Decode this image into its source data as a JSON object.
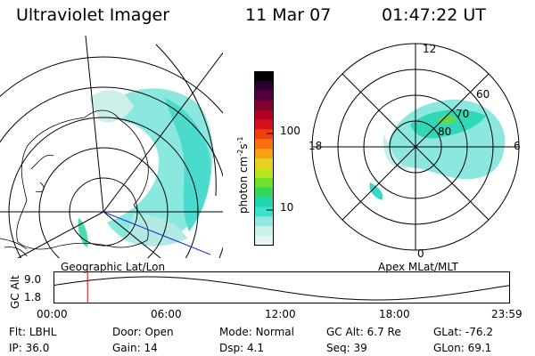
{
  "header": {
    "instrument": "Ultraviolet Imager",
    "date": "11 Mar 07",
    "time": "01:47:22 UT"
  },
  "colorbar": {
    "unit": "photon cm",
    "unit_exp1": "-2",
    "unit_mid": "s",
    "unit_exp2": "-1",
    "ticks": [
      "100",
      "10"
    ],
    "colors": [
      "#000000",
      "#2b0030",
      "#55003c",
      "#800030",
      "#b00020",
      "#d8101a",
      "#f04010",
      "#f87010",
      "#f8a010",
      "#e8d020",
      "#b8e820",
      "#70e030",
      "#30d860",
      "#20d8b0",
      "#40e0d0",
      "#90e8e0",
      "#c8f0ec",
      "#e8f4f2"
    ]
  },
  "geo_panel": {
    "label": "Geographic Lat/Lon"
  },
  "polar_panel": {
    "label": "Apex MLat/MLT",
    "mlt_labels": {
      "top": "12",
      "right": "6",
      "bottom": "0",
      "left": "18"
    },
    "lat_labels": [
      "60",
      "70",
      "80"
    ]
  },
  "altitude_plot": {
    "axis_label": "GC Alt",
    "y_ticks": [
      "9.0",
      "1.8"
    ],
    "x_ticks": [
      "00:00",
      "06:00",
      "12:00",
      "18:00",
      "23:59"
    ],
    "marker_time_hours": 1.79
  },
  "status": {
    "row1": [
      {
        "key": "Flt:",
        "value": "LBHL"
      },
      {
        "key": "Door:",
        "value": "Open"
      },
      {
        "key": "Mode:",
        "value": "Normal"
      },
      {
        "key": "GC Alt:",
        "value": "6.7 Re"
      },
      {
        "key": "GLat:",
        "value": "-76.2"
      }
    ],
    "row2": [
      {
        "key": "IP:",
        "value": "36.0"
      },
      {
        "key": "Gain:",
        "value": "14"
      },
      {
        "key": "Dsp:",
        "value": "4.1"
      },
      {
        "key": "Seq:",
        "value": "39"
      },
      {
        "key": "GLon:",
        "value": "69.1"
      }
    ]
  }
}
